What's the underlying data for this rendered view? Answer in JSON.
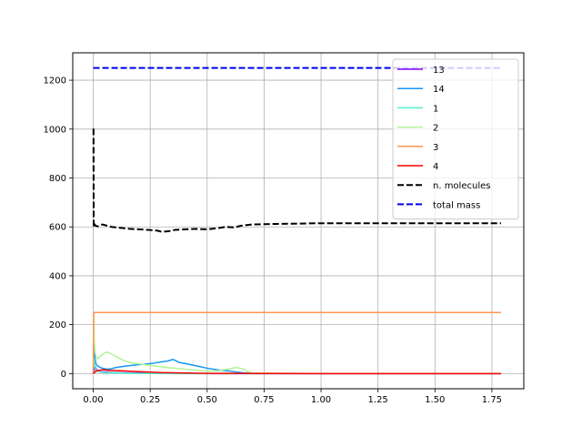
{
  "chart_data": {
    "type": "line",
    "title": "",
    "xlabel": "",
    "ylabel": "",
    "xlim": [
      -0.09,
      1.89
    ],
    "ylim": [
      -62,
      1312
    ],
    "grid": true,
    "legend_position": "top-right",
    "xticks": [
      {
        "value": 0.0,
        "label": "0.00"
      },
      {
        "value": 0.25,
        "label": "0.25"
      },
      {
        "value": 0.5,
        "label": "0.50"
      },
      {
        "value": 0.75,
        "label": "0.75"
      },
      {
        "value": 1.0,
        "label": "1.00"
      },
      {
        "value": 1.25,
        "label": "1.25"
      },
      {
        "value": 1.5,
        "label": "1.50"
      },
      {
        "value": 1.75,
        "label": "1.75"
      }
    ],
    "yticks": [
      {
        "value": 0,
        "label": "0"
      },
      {
        "value": 200,
        "label": "200"
      },
      {
        "value": 400,
        "label": "400"
      },
      {
        "value": 600,
        "label": "600"
      },
      {
        "value": 800,
        "label": "800"
      },
      {
        "value": 1000,
        "label": "1000"
      },
      {
        "value": 1200,
        "label": "1200"
      }
    ],
    "series": [
      {
        "name": "13",
        "color": "#8000ff",
        "dash": false,
        "x": [
          0,
          0.004,
          0.008,
          0.012,
          0.02,
          0.03,
          0.05,
          0.08,
          0.12,
          0.2,
          0.3,
          0.6,
          1.0,
          1.79
        ],
        "y": [
          0,
          12,
          30,
          20,
          12,
          8,
          6,
          4,
          3,
          2,
          1,
          0,
          0,
          0
        ]
      },
      {
        "name": "14",
        "color": "#1996f3",
        "dash": false,
        "x": [
          0,
          0.004,
          0.008,
          0.012,
          0.02,
          0.04,
          0.06,
          0.08,
          0.1,
          0.14,
          0.18,
          0.22,
          0.26,
          0.3,
          0.33,
          0.35,
          0.38,
          0.42,
          0.46,
          0.5,
          0.55,
          0.6,
          0.63,
          0.66,
          0.7,
          1.0,
          1.79
        ],
        "y": [
          0,
          110,
          60,
          40,
          30,
          22,
          18,
          20,
          25,
          30,
          35,
          38,
          42,
          48,
          52,
          58,
          45,
          38,
          30,
          22,
          15,
          10,
          6,
          3,
          1,
          0,
          0
        ]
      },
      {
        "name": "1",
        "color": "#4df3ce",
        "dash": false,
        "x": [
          0,
          0.004,
          0.008,
          0.012,
          0.02,
          0.03,
          0.05,
          0.08,
          0.12,
          0.2,
          0.4,
          0.7,
          1.79
        ],
        "y": [
          0,
          60,
          30,
          15,
          10,
          6,
          4,
          3,
          2,
          1,
          0,
          0,
          0
        ]
      },
      {
        "name": "2",
        "color": "#b2f396",
        "dash": false,
        "x": [
          0,
          0.002,
          0.004,
          0.008,
          0.012,
          0.02,
          0.03,
          0.045,
          0.06,
          0.08,
          0.1,
          0.13,
          0.16,
          0.2,
          0.24,
          0.28,
          0.32,
          0.36,
          0.4,
          0.45,
          0.5,
          0.55,
          0.6,
          0.63,
          0.66,
          0.68,
          0.7,
          1.0,
          1.79
        ],
        "y": [
          0,
          250,
          140,
          90,
          70,
          60,
          70,
          82,
          88,
          80,
          70,
          55,
          45,
          40,
          35,
          30,
          25,
          22,
          18,
          14,
          10,
          12,
          20,
          25,
          18,
          8,
          2,
          0,
          0
        ]
      },
      {
        "name": "3",
        "color": "#ff964f",
        "dash": false,
        "x": [
          0,
          0.002,
          0.004,
          1.79
        ],
        "y": [
          0,
          250,
          250,
          250
        ]
      },
      {
        "name": "4",
        "color": "#ff0000",
        "dash": false,
        "x": [
          0,
          0.01,
          0.02,
          0.04,
          0.06,
          0.1,
          0.15,
          0.2,
          0.25,
          0.3,
          0.35,
          0.5,
          1.0,
          1.79
        ],
        "y": [
          0,
          8,
          12,
          16,
          14,
          12,
          10,
          8,
          6,
          4,
          3,
          1,
          0,
          0
        ]
      },
      {
        "name": "n. molecules",
        "color": "#000000",
        "dash": true,
        "x": [
          0,
          0.001,
          0.002,
          0.004,
          0.01,
          0.02,
          0.04,
          0.06,
          0.08,
          0.1,
          0.13,
          0.16,
          0.2,
          0.24,
          0.28,
          0.3,
          0.33,
          0.36,
          0.4,
          0.45,
          0.5,
          0.55,
          0.58,
          0.62,
          0.65,
          0.7,
          0.8,
          1.0,
          1.79
        ],
        "y": [
          1000,
          1000,
          600,
          612,
          605,
          602,
          610,
          605,
          600,
          598,
          595,
          592,
          590,
          588,
          585,
          580,
          582,
          588,
          590,
          592,
          590,
          595,
          600,
          598,
          605,
          610,
          612,
          615,
          615
        ]
      },
      {
        "name": "total mass",
        "color": "#0000ee",
        "dash": true,
        "x": [
          0,
          1.79
        ],
        "y": [
          1250,
          1250
        ]
      }
    ]
  }
}
